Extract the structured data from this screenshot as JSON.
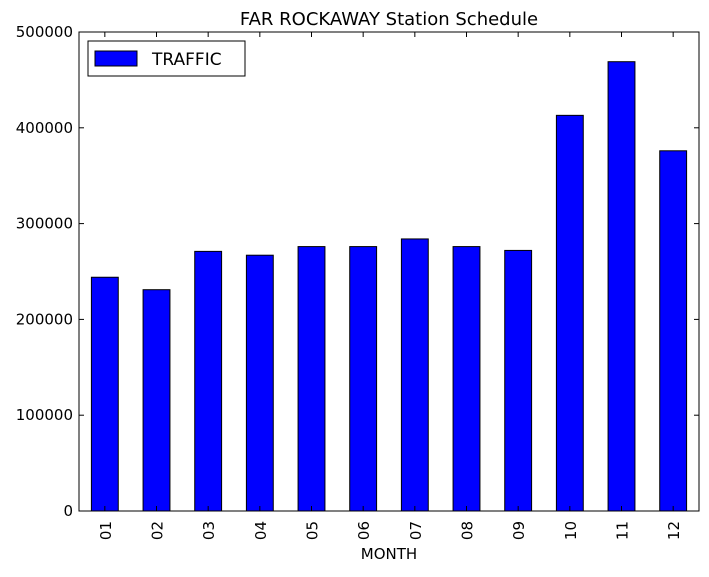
{
  "chart_data": {
    "type": "bar",
    "title": "FAR ROCKAWAY Station Schedule",
    "xlabel": "MONTH",
    "ylabel": "",
    "categories": [
      "01",
      "02",
      "03",
      "04",
      "05",
      "06",
      "07",
      "08",
      "09",
      "10",
      "11",
      "12"
    ],
    "series": [
      {
        "name": "TRAFFIC",
        "color": "#0000ff",
        "values": [
          244000,
          231000,
          271000,
          267000,
          276000,
          276000,
          284000,
          276000,
          272000,
          413000,
          469000,
          376000
        ]
      }
    ],
    "ylim": [
      0,
      500000
    ],
    "yticks": [
      "0",
      "100000",
      "200000",
      "300000",
      "400000",
      "500000"
    ],
    "grid": false,
    "legend_position": "top-left"
  }
}
